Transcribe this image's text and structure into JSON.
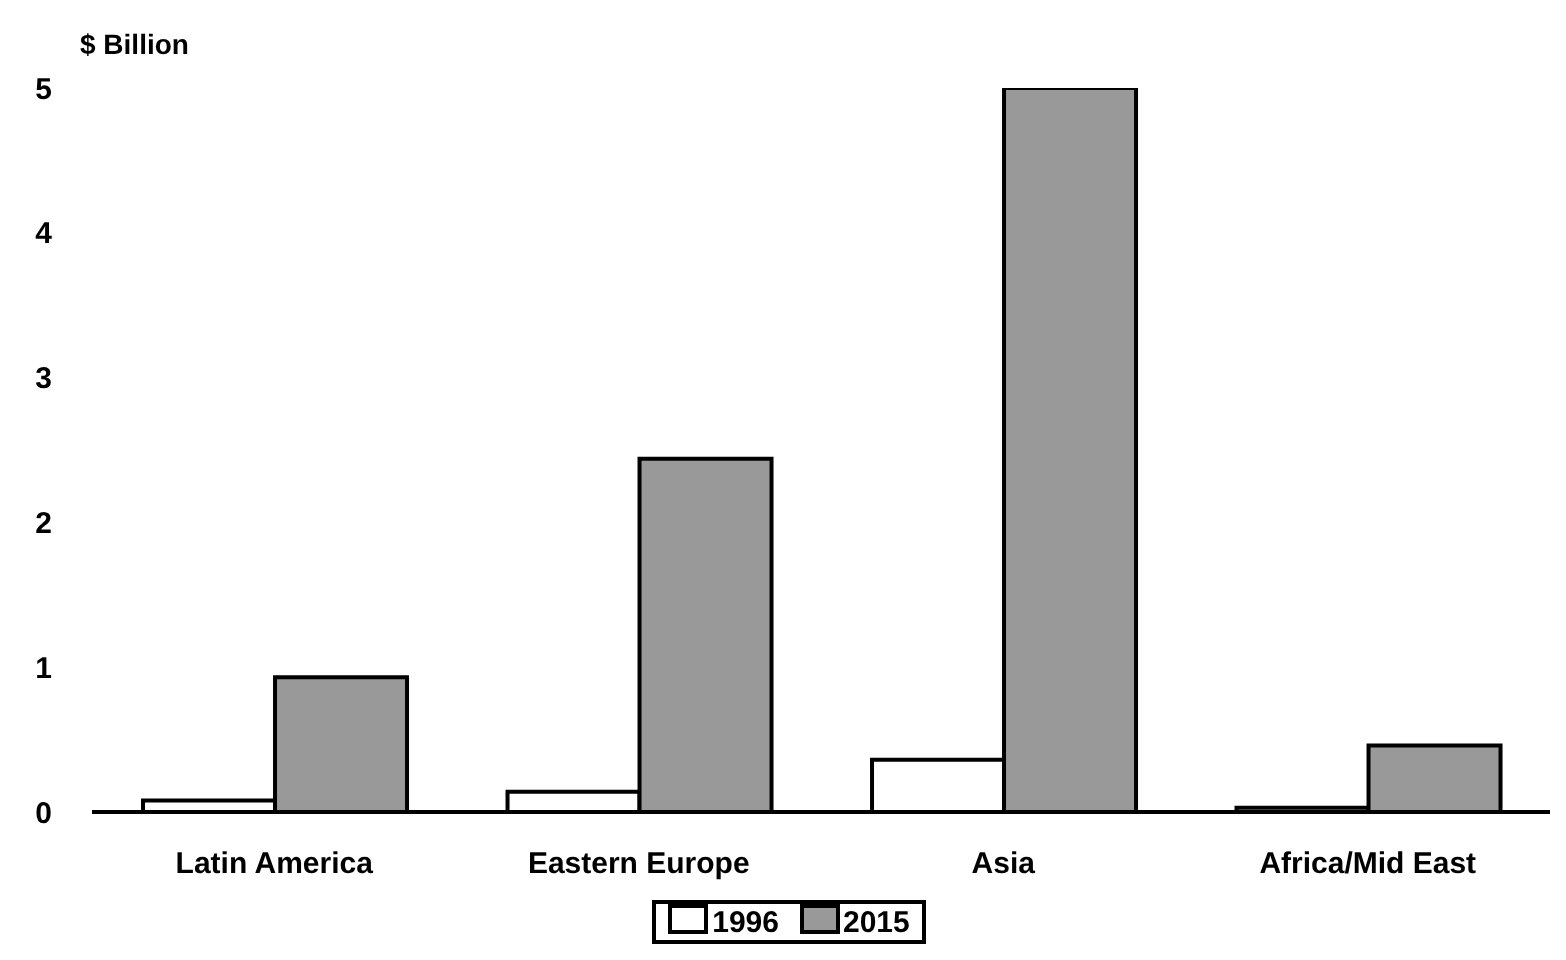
{
  "chart_data": {
    "type": "bar",
    "ylabel": "$ Billion",
    "categories": [
      "Latin America",
      "Eastern Europe",
      "Asia",
      "Africa/Mid East"
    ],
    "series": [
      {
        "name": "1996",
        "color": "#ffffff",
        "values": [
          0.08,
          0.14,
          0.36,
          0.03
        ]
      },
      {
        "name": "2015",
        "color": "#999999",
        "values": [
          0.93,
          2.44,
          5.0,
          0.46
        ]
      }
    ],
    "ylim": [
      0,
      5
    ],
    "yticks": [
      0,
      1,
      2,
      3,
      4,
      5
    ],
    "grid": false,
    "legend": "bottom"
  }
}
